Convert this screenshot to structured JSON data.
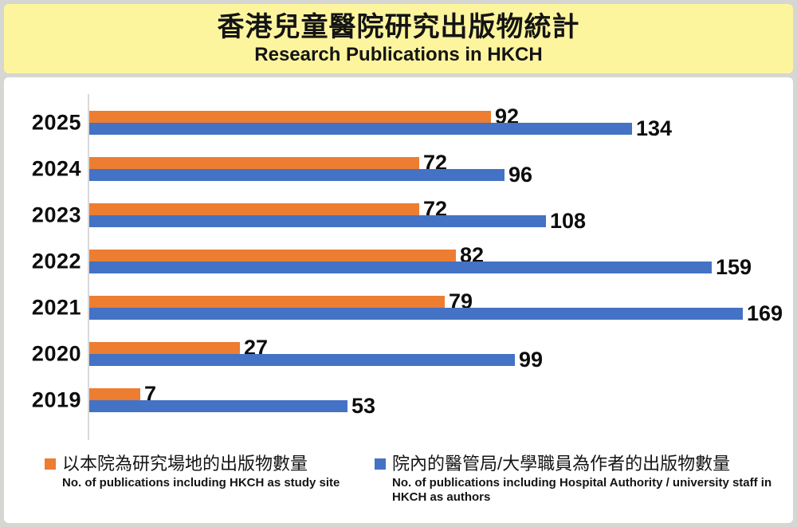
{
  "header": {
    "title_zh": "香港兒童醫院研究出版物統計",
    "title_en": "Research Publications in HKCH"
  },
  "chart_data": {
    "type": "bar",
    "orientation": "horizontal",
    "title": "香港兒童醫院研究出版物統計 / Research Publications in HKCH",
    "categories": [
      "2025",
      "2024",
      "2023",
      "2022",
      "2021",
      "2020",
      "2019"
    ],
    "series": [
      {
        "name_zh": "以本院為研究場地的出版物數量",
        "name_en": "No. of publications including HKCH as study site",
        "color": "#ED7D31",
        "values": [
          92,
          72,
          72,
          82,
          79,
          27,
          7
        ]
      },
      {
        "name_zh": "院內的醫管局/大學職員為作者的出版物數量",
        "name_en": "No. of publications including Hospital Authority / university staff in HKCH as authors",
        "color": "#4472C4",
        "values": [
          134,
          96,
          108,
          159,
          169,
          99,
          53
        ]
      }
    ],
    "xlim": [
      0,
      175
    ],
    "xlabel": "",
    "ylabel": "",
    "grid": false,
    "data_labels": true,
    "legend_position": "bottom"
  },
  "colors": {
    "header_background": "#fdf59e",
    "page_border": "#d6d6d2",
    "chart_background": "#ffffff",
    "axis_line": "#d9d9d9",
    "text": "#0d0d0d"
  }
}
